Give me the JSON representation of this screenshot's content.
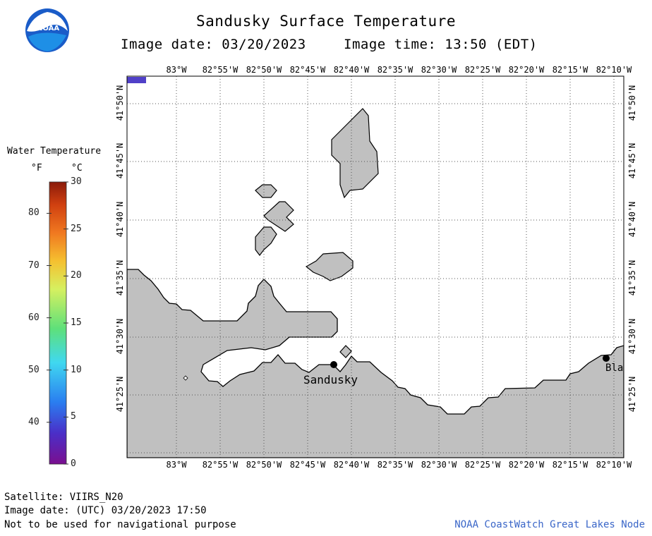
{
  "header": {
    "title": "Sandusky Surface Temperature",
    "image_date": "Image date: 03/20/2023",
    "image_time": "Image time: 13:50 (EDT)"
  },
  "logo": {
    "text": "NOAA"
  },
  "legend": {
    "title": "Water Temperature",
    "unit_f": "°F",
    "unit_c": "°C",
    "ticks_f": [
      "80",
      "70",
      "60",
      "50",
      "40"
    ],
    "ticks_c": [
      "30",
      "25",
      "20",
      "15",
      "10",
      "5",
      "0"
    ],
    "range_c": [
      0,
      30
    ],
    "colors": [
      "#7a0f8f",
      "#4a2fc8",
      "#2a7ef0",
      "#40d8f0",
      "#5ee07a",
      "#d6f060",
      "#f5c030",
      "#f07820",
      "#d04010",
      "#8a1a0a"
    ]
  },
  "map": {
    "lon_labels": [
      "83°W",
      "82°55'W",
      "82°50'W",
      "82°45'W",
      "82°40'W",
      "82°35'W",
      "82°30'W",
      "82°25'W",
      "82°20'W",
      "82°15'W",
      "82°10'W"
    ],
    "lat_labels": [
      "41°50'N",
      "41°45'N",
      "41°40'N",
      "41°35'N",
      "41°30'N",
      "41°25'N"
    ],
    "places": [
      {
        "name": "Sandusky"
      },
      {
        "name": "Bla"
      }
    ],
    "land_color": "#c0c0c0",
    "water_color": "#ffffff",
    "no_data_color": "#5040c8"
  },
  "footer": {
    "satellite": "Satellite: VIIRS_N20",
    "utc_date": "Image date: (UTC) 03/20/2023  17:50",
    "disclaimer": "Not to be used for navigational purpose",
    "credit": "NOAA CoastWatch Great Lakes Node"
  }
}
